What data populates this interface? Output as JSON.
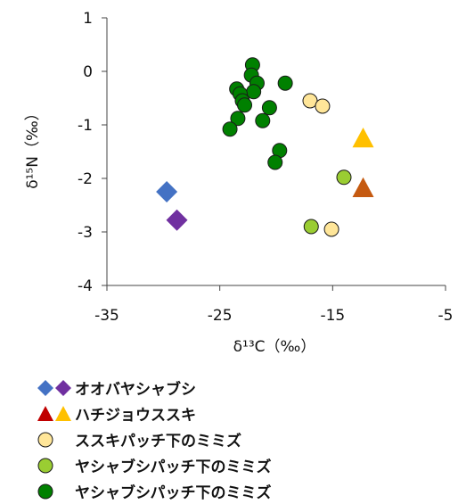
{
  "chart_data": {
    "type": "scatter",
    "xlabel": "δ¹³C（‰）",
    "ylabel": "δ¹⁵N（‰）",
    "xlim": [
      -35,
      -5
    ],
    "ylim": [
      -4,
      1
    ],
    "xticks": [
      -35,
      -25,
      -15,
      -5
    ],
    "yticks": [
      1,
      0,
      -1,
      -2,
      -3,
      -4
    ],
    "grid": false,
    "legend_position": "bottom",
    "series": [
      {
        "marker": "diamond",
        "color": "#4472C4",
        "points": [
          {
            "x": -29.7,
            "y": -2.25
          }
        ]
      },
      {
        "marker": "diamond",
        "color": "#7030A0",
        "points": [
          {
            "x": -28.8,
            "y": -2.78
          }
        ]
      },
      {
        "marker": "triangle",
        "color": "#C55A11",
        "points": [
          {
            "x": -12.3,
            "y": -2.18
          }
        ]
      },
      {
        "marker": "triangle",
        "color": "#FFC000",
        "points": [
          {
            "x": -12.3,
            "y": -1.25
          }
        ]
      },
      {
        "marker": "circle",
        "color": "#FFE699",
        "points": [
          {
            "x": -17.0,
            "y": -0.55
          },
          {
            "x": -15.9,
            "y": -0.65
          },
          {
            "x": -15.1,
            "y": -2.95
          }
        ]
      },
      {
        "marker": "circle",
        "color": "#9ACD32",
        "points": [
          {
            "x": -16.9,
            "y": -2.9
          },
          {
            "x": -14.0,
            "y": -1.98
          }
        ]
      },
      {
        "marker": "circle",
        "color": "#008000",
        "points": [
          {
            "x": -22.1,
            "y": 0.12
          },
          {
            "x": -22.2,
            "y": -0.07
          },
          {
            "x": -21.7,
            "y": -0.22
          },
          {
            "x": -22.0,
            "y": -0.38
          },
          {
            "x": -23.5,
            "y": -0.33
          },
          {
            "x": -23.2,
            "y": -0.42
          },
          {
            "x": -23.0,
            "y": -0.55
          },
          {
            "x": -22.8,
            "y": -0.63
          },
          {
            "x": -19.2,
            "y": -0.22
          },
          {
            "x": -20.6,
            "y": -0.68
          },
          {
            "x": -21.2,
            "y": -0.92
          },
          {
            "x": -23.4,
            "y": -0.88
          },
          {
            "x": -24.1,
            "y": -1.08
          },
          {
            "x": -19.7,
            "y": -1.48
          },
          {
            "x": -20.1,
            "y": -1.7
          }
        ]
      }
    ]
  },
  "legend": {
    "items": [
      {
        "label": "オオバヤシャブシ",
        "symbols": [
          {
            "shape": "diamond",
            "color": "#4472C4"
          },
          {
            "shape": "diamond",
            "color": "#7030A0"
          }
        ]
      },
      {
        "label": "ハチジョウススキ",
        "symbols": [
          {
            "shape": "triangle",
            "color": "#C00000"
          },
          {
            "shape": "triangle",
            "color": "#FFC000"
          }
        ]
      },
      {
        "label": "ススキパッチ下のミミズ",
        "symbols": [
          {
            "shape": "circle",
            "color": "#FFE699"
          }
        ]
      },
      {
        "label": "ヤシャブシパッチ下のミミズ",
        "symbols": [
          {
            "shape": "circle",
            "color": "#9ACD32"
          }
        ]
      },
      {
        "label": "ヤシャブシパッチ下のミミズ",
        "symbols": [
          {
            "shape": "circle",
            "color": "#008000"
          }
        ]
      }
    ]
  }
}
